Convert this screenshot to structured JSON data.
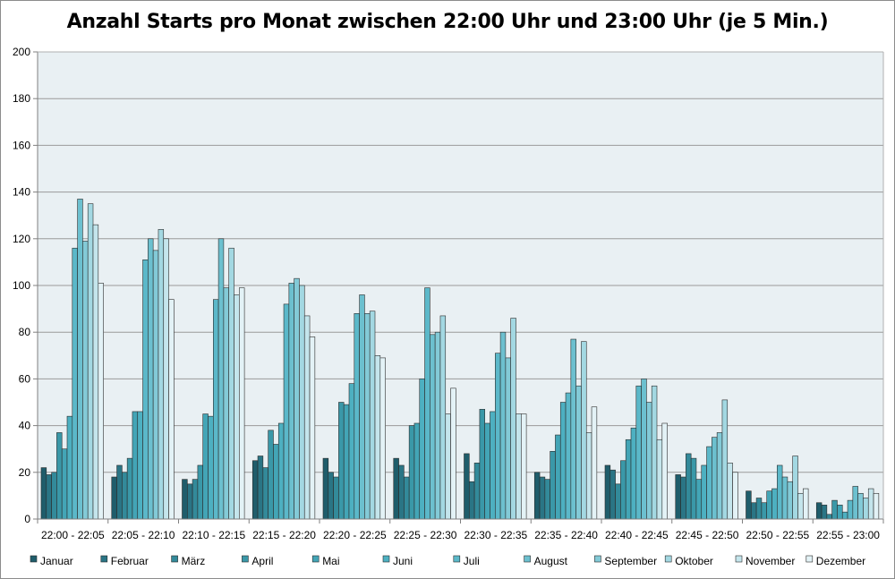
{
  "chart_data": {
    "type": "bar",
    "title": "Anzahl Starts pro Monat zwischen 22:00 Uhr und 23:00 Uhr (je 5 Min.)",
    "xlabel": "",
    "ylabel": "",
    "ylim": [
      0,
      200
    ],
    "yticks": [
      "0",
      "20",
      "40",
      "60",
      "80",
      "100",
      "120",
      "140",
      "160",
      "180",
      "200"
    ],
    "grid": true,
    "legend_position": "bottom",
    "categories": [
      "22:00 - 22:05",
      "22:05 - 22:10",
      "22:10 - 22:15",
      "22:15 - 22:20",
      "22:20 - 22:25",
      "22:25 - 22:30",
      "22:30 - 22:35",
      "22:35 - 22:40",
      "22:40 - 22:45",
      "22:45 - 22:50",
      "22:50 - 22:55",
      "22:55 - 23:00"
    ],
    "series": [
      {
        "name": "Januar",
        "color": "#1f5d6b",
        "values": [
          22,
          18,
          17,
          25,
          26,
          26,
          28,
          20,
          23,
          19,
          12,
          7
        ]
      },
      {
        "name": "Februar",
        "color": "#2a7585",
        "values": [
          19,
          23,
          15,
          27,
          20,
          23,
          16,
          18,
          21,
          18,
          7,
          6
        ]
      },
      {
        "name": "März",
        "color": "#338a9a",
        "values": [
          20,
          20,
          17,
          22,
          18,
          18,
          24,
          17,
          15,
          28,
          9,
          2
        ]
      },
      {
        "name": "April",
        "color": "#3a98a8",
        "values": [
          37,
          26,
          23,
          38,
          50,
          40,
          47,
          29,
          25,
          26,
          7,
          8
        ]
      },
      {
        "name": "Mai",
        "color": "#43a5b6",
        "values": [
          30,
          46,
          45,
          32,
          49,
          41,
          41,
          36,
          34,
          17,
          12,
          6
        ]
      },
      {
        "name": "Juni",
        "color": "#4db0c1",
        "values": [
          44,
          46,
          44,
          41,
          58,
          60,
          46,
          50,
          39,
          23,
          13,
          3
        ]
      },
      {
        "name": "Juli",
        "color": "#5bb8c9",
        "values": [
          116,
          111,
          94,
          92,
          88,
          99,
          71,
          54,
          57,
          31,
          23,
          8
        ]
      },
      {
        "name": "August",
        "color": "#6cc0cf",
        "values": [
          137,
          120,
          120,
          101,
          96,
          79,
          80,
          77,
          60,
          35,
          18,
          14
        ]
      },
      {
        "name": "September",
        "color": "#83cad7",
        "values": [
          119,
          115,
          99,
          103,
          88,
          80,
          69,
          57,
          50,
          37,
          16,
          11
        ]
      },
      {
        "name": "Oktober",
        "color": "#a3d8e2",
        "values": [
          135,
          124,
          116,
          100,
          89,
          87,
          86,
          76,
          57,
          51,
          27,
          9
        ]
      },
      {
        "name": "November",
        "color": "#c4e5ec",
        "values": [
          126,
          120,
          96,
          87,
          70,
          45,
          45,
          37,
          34,
          24,
          11,
          13
        ]
      },
      {
        "name": "Dezember",
        "color": "#e3f2f6",
        "values": [
          101,
          94,
          99,
          78,
          69,
          56,
          45,
          48,
          41,
          20,
          13,
          11
        ]
      }
    ]
  }
}
